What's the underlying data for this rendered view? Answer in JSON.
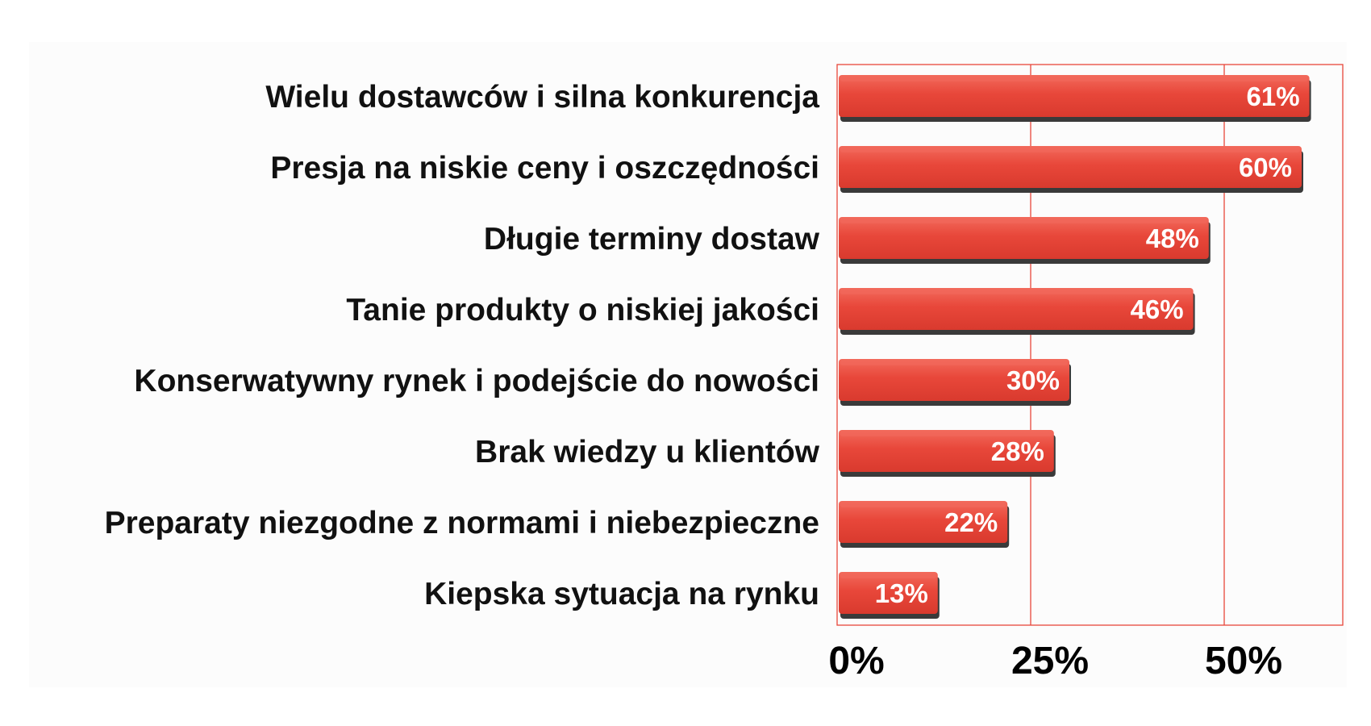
{
  "chart_data": {
    "type": "bar",
    "orientation": "horizontal",
    "categories": [
      "Wielu dostawców i silna konkurencja",
      "Presja na niskie ceny i oszczędności",
      "Długie terminy dostaw",
      "Tanie produkty o niskiej jakości",
      "Konserwatywny rynek i podejście do nowości",
      "Brak wiedzy u klientów",
      "Preparaty niezgodne z normami i niebezpieczne",
      "Kiepska sytuacja na rynku"
    ],
    "values": [
      61,
      60,
      48,
      46,
      30,
      28,
      22,
      13
    ],
    "data_labels": [
      "61%",
      "60%",
      "48%",
      "46%",
      "30%",
      "28%",
      "22%",
      "13%"
    ],
    "x_ticks": [
      0,
      25,
      50
    ],
    "x_tick_labels": [
      "0%",
      "25%",
      "50%"
    ],
    "xlim": [
      0,
      65
    ],
    "grid": true,
    "legend": "none",
    "colors": {
      "bar": "#e8473a",
      "bar_highlight": "#f26a5c",
      "bar_shadow": "#3a3a3a",
      "axis": "#e8473a",
      "category_text": "#111111",
      "tick_text": "#000000",
      "data_label_text": "#ffffff"
    }
  }
}
